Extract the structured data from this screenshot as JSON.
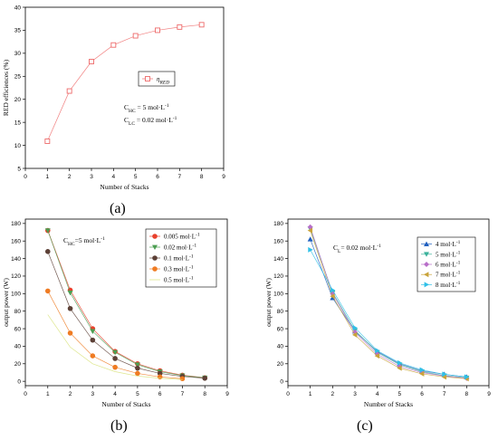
{
  "captions": {
    "a": "(a)",
    "b": "(b)",
    "c": "(c)"
  },
  "chart_data": [
    {
      "id": "a",
      "type": "line",
      "xlabel": "Number of Stacks",
      "ylabel": "RED efficiences (%)",
      "xlim": [
        0,
        9
      ],
      "ylim": [
        5,
        40
      ],
      "xticks": [
        0,
        1,
        2,
        3,
        4,
        5,
        6,
        7,
        8,
        9
      ],
      "yticks": [
        5,
        10,
        15,
        20,
        25,
        30,
        35,
        40
      ],
      "series": [
        {
          "name": "η",
          "name_sub": "RED",
          "color": "#ee6a6a",
          "marker": "square-open",
          "x": [
            1,
            2,
            3,
            4,
            5,
            6,
            7,
            8
          ],
          "y": [
            10.9,
            21.8,
            28.2,
            31.8,
            33.8,
            35.0,
            35.7,
            36.2
          ]
        }
      ],
      "annotations": [
        {
          "main": "C",
          "sub": "HC",
          "rest": " = 5 mol·L",
          "sup": "-1"
        },
        {
          "main": "C",
          "sub": "LC",
          "rest": " = 0.02 mol·L",
          "sup": "-1"
        }
      ],
      "legend": "center-right"
    },
    {
      "id": "b",
      "type": "line",
      "xlabel": "Number of Stacks",
      "ylabel": "output power (W)",
      "xlim": [
        0,
        9
      ],
      "ylim": [
        -5,
        185
      ],
      "xticks": [
        0,
        1,
        2,
        3,
        4,
        5,
        6,
        7,
        8,
        9
      ],
      "yticks": [
        0,
        20,
        40,
        60,
        80,
        100,
        120,
        140,
        160,
        180
      ],
      "annotations": [
        {
          "main": "C",
          "sub": "HC",
          "rest": "=5 mol·L",
          "sup": "-1"
        }
      ],
      "legend": "top-right",
      "series": [
        {
          "name": "0.005 mol·L",
          "sup": "-1",
          "color": "#e8402c",
          "marker": "circle",
          "x": [
            1,
            2,
            3,
            4,
            5,
            6,
            7,
            8
          ],
          "y": [
            172,
            104,
            60,
            34,
            20,
            12,
            7,
            4
          ]
        },
        {
          "name": "0.02 mol·L",
          "sup": "-1",
          "color": "#4c9e52",
          "marker": "triangle-down",
          "x": [
            1,
            2,
            3,
            4,
            5,
            6,
            7,
            8
          ],
          "y": [
            172,
            101,
            57,
            33,
            19,
            11,
            6.5,
            4
          ]
        },
        {
          "name": "0.1 mol·L",
          "sup": "-1",
          "color": "#5c4036",
          "marker": "circle",
          "x": [
            1,
            2,
            3,
            4,
            5,
            6,
            7,
            8
          ],
          "y": [
            148,
            83,
            47,
            26,
            15,
            9,
            5.5,
            3.5
          ]
        },
        {
          "name": "0.3 mol·L",
          "sup": "-1",
          "color": "#ef7b22",
          "marker": "circle",
          "x": [
            1,
            2,
            3,
            4,
            5,
            6,
            7
          ],
          "y": [
            103,
            55,
            29,
            16,
            9,
            5,
            3
          ]
        },
        {
          "name": "0.5 mol·L",
          "sup": "-1",
          "color": "#d8e27a",
          "marker": "none",
          "x": [
            1,
            2,
            3,
            4,
            5,
            6,
            7
          ],
          "y": [
            76,
            39,
            20,
            11,
            6,
            3.5,
            2
          ]
        }
      ]
    },
    {
      "id": "c",
      "type": "line",
      "xlabel": "Number of Stacks",
      "ylabel": "output power (W)",
      "xlim": [
        0,
        9
      ],
      "ylim": [
        -5,
        185
      ],
      "xticks": [
        0,
        1,
        2,
        3,
        4,
        5,
        6,
        7,
        8,
        9
      ],
      "yticks": [
        0,
        20,
        40,
        60,
        80,
        100,
        120,
        140,
        160,
        180
      ],
      "annotations": [
        {
          "main": "C",
          "sub": "L",
          "rest": "= 0.02 mol·L",
          "sup": "-1"
        }
      ],
      "legend": "top-right",
      "series": [
        {
          "name": "4 mol·L",
          "sup": "-1",
          "color": "#1f5fbf",
          "marker": "triangle-up",
          "x": [
            1,
            2,
            3,
            4,
            5,
            6,
            7,
            8
          ],
          "y": [
            162,
            95,
            57,
            34,
            20,
            12,
            8,
            5
          ]
        },
        {
          "name": "5 mol·L",
          "sup": "-1",
          "color": "#3cb29c",
          "marker": "triangle-down",
          "x": [
            1,
            2,
            3,
            4,
            5,
            6,
            7,
            8
          ],
          "y": [
            174,
            101,
            58,
            33,
            19,
            11,
            6.5,
            4
          ]
        },
        {
          "name": "6 mol·L",
          "sup": "-1",
          "color": "#b86ec9",
          "marker": "diamond",
          "x": [
            1,
            2,
            3,
            4,
            5,
            6,
            7,
            8
          ],
          "y": [
            176,
            100,
            56,
            31,
            17,
            10,
            6,
            3.5
          ]
        },
        {
          "name": "7 mol·L",
          "sup": "-1",
          "color": "#c9a33a",
          "marker": "triangle-left",
          "x": [
            1,
            2,
            3,
            4,
            5,
            6,
            7,
            8
          ],
          "y": [
            172,
            97,
            53,
            29,
            15,
            8.5,
            5,
            3
          ]
        },
        {
          "name": "8 mol·L",
          "sup": "-1",
          "color": "#2fc0e8",
          "marker": "triangle-right",
          "x": [
            1,
            2,
            3,
            4,
            5,
            6,
            7,
            8
          ],
          "y": [
            150,
            104,
            61,
            35,
            21,
            13,
            8,
            5
          ]
        }
      ]
    }
  ]
}
